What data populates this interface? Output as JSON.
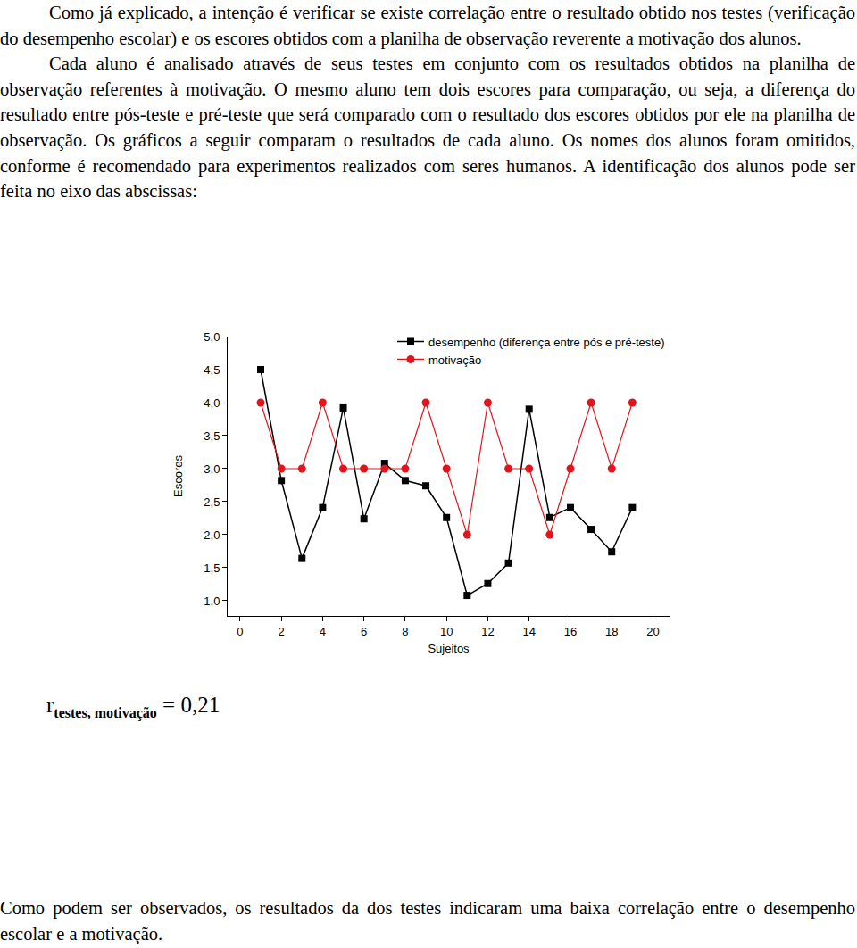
{
  "document": {
    "paragraphs_before": [
      "Como já explicado, a intenção é verificar se existe correlação entre o resultado obtido nos testes (verificação do desempenho escolar) e os escores obtidos com a planilha de observação reverente a motivação dos alunos.",
      "Cada aluno é analisado através de seus testes em conjunto com os resultados obtidos na planilha de observação referentes à motivação. O mesmo aluno tem dois escores para comparação, ou seja, a diferença do resultado entre pós-teste e pré-teste que será comparado com o resultado dos escores obtidos por ele na planilha de observação. Os gráficos a seguir comparam o resultados de cada aluno. Os nomes dos alunos foram omitidos, conforme é recomendado para experimentos realizados com seres humanos. A identificação dos alunos pode ser feita no eixo das abscissas:"
    ],
    "correlation": {
      "symbol": "r",
      "subscript": "testes, motivação",
      "relation": "=",
      "value": "0,21"
    },
    "paragraphs_after": [
      "Como podem ser observados, os resultados da dos testes indicaram uma baixa correlação entre o desempenho escolar e a motivação."
    ]
  },
  "chart_data": {
    "type": "line",
    "x_label": "Sujeitos",
    "y_label": "Escores",
    "x": [
      1,
      2,
      3,
      4,
      5,
      6,
      7,
      8,
      9,
      10,
      11,
      12,
      13,
      14,
      15,
      16,
      17,
      18,
      19
    ],
    "series": [
      {
        "name": "desempenho (diferença entre pós e pré-teste)",
        "color": "#000000",
        "marker": "square",
        "line_style": "solid",
        "values": [
          4.5,
          2.82,
          1.64,
          2.41,
          3.92,
          2.24,
          3.08,
          2.82,
          2.74,
          2.26,
          1.08,
          1.26,
          1.57,
          3.9,
          2.26,
          2.41,
          2.08,
          1.74,
          2.41
        ]
      },
      {
        "name": "motivação",
        "color": "#e3151c",
        "marker": "circle",
        "line_style": "solid",
        "values": [
          4,
          3,
          3,
          4,
          3,
          3,
          3,
          3,
          4,
          3,
          2,
          4,
          3,
          3,
          2,
          3,
          4,
          3,
          4
        ]
      }
    ],
    "xlim": [
      -0.6,
      20.8
    ],
    "xticks": [
      0,
      2,
      4,
      6,
      8,
      10,
      12,
      14,
      16,
      18,
      20
    ],
    "ylim": [
      0.77,
      5
    ],
    "yticks": [
      {
        "value": 1,
        "label": "1,0"
      },
      {
        "value": 1.5,
        "label": "1,5"
      },
      {
        "value": 2,
        "label": "2,0"
      },
      {
        "value": 2.5,
        "label": "2,5"
      },
      {
        "value": 3,
        "label": "3,0"
      },
      {
        "value": 3.5,
        "label": "3,5"
      },
      {
        "value": 4,
        "label": "4,0"
      },
      {
        "value": 4.5,
        "label": "4,5"
      },
      {
        "value": 5,
        "label": "5,0"
      }
    ],
    "grid": false,
    "legend": "top-right"
  }
}
